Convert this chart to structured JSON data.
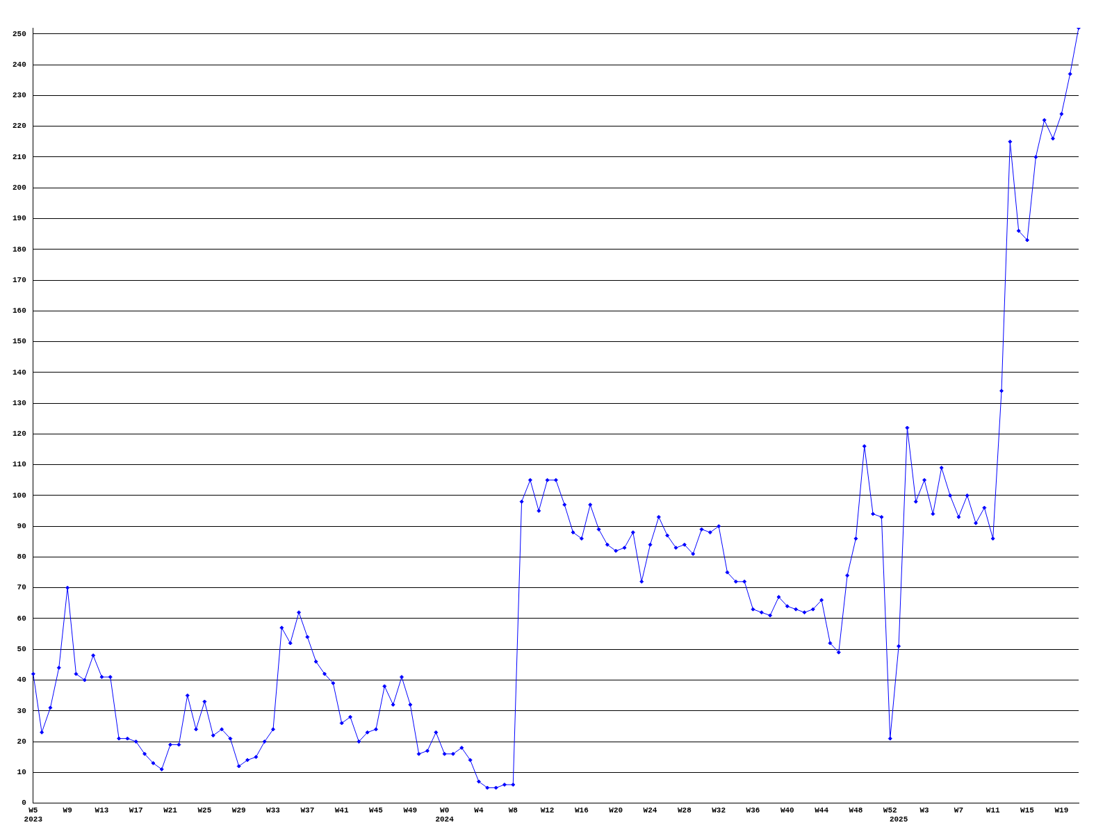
{
  "chart_data": {
    "type": "line",
    "categories": [
      "W5\n2023",
      null,
      null,
      null,
      "W9",
      null,
      null,
      null,
      "W13",
      null,
      null,
      null,
      "W17",
      null,
      null,
      null,
      "W21",
      null,
      null,
      null,
      "W25",
      null,
      null,
      null,
      "W29",
      null,
      null,
      null,
      "W33",
      null,
      null,
      null,
      "W37",
      null,
      null,
      null,
      "W41",
      null,
      null,
      null,
      "W45",
      null,
      null,
      null,
      "W49",
      null,
      null,
      null,
      "W0\n2024",
      null,
      null,
      null,
      "W4",
      null,
      null,
      null,
      "W8",
      null,
      null,
      null,
      "W12",
      null,
      null,
      null,
      "W16",
      null,
      null,
      null,
      "W20",
      null,
      null,
      null,
      "W24",
      null,
      null,
      null,
      "W28",
      null,
      null,
      null,
      "W32",
      null,
      null,
      null,
      "W36",
      null,
      null,
      null,
      "W40",
      null,
      null,
      null,
      "W44",
      null,
      null,
      null,
      "W48",
      null,
      null,
      null,
      "W52",
      "\n2025",
      null,
      null,
      "W3",
      null,
      null,
      null,
      "W7",
      null,
      null,
      null,
      "W11",
      null,
      null,
      null,
      "W15",
      null,
      null,
      null,
      "W19",
      null,
      null
    ],
    "values": [
      42,
      23,
      31,
      44,
      70,
      42,
      40,
      48,
      41,
      41,
      21,
      21,
      20,
      16,
      13,
      11,
      19,
      19,
      35,
      24,
      33,
      22,
      24,
      21,
      12,
      14,
      15,
      20,
      24,
      57,
      52,
      62,
      54,
      46,
      42,
      39,
      26,
      28,
      20,
      23,
      24,
      38,
      32,
      41,
      32,
      16,
      17,
      23,
      16,
      16,
      18,
      14,
      7,
      5,
      5,
      6,
      6,
      98,
      105,
      95,
      105,
      105,
      97,
      88,
      86,
      97,
      89,
      84,
      82,
      83,
      88,
      72,
      84,
      93,
      87,
      83,
      84,
      81,
      89,
      88,
      90,
      75,
      72,
      72,
      63,
      62,
      61,
      67,
      64,
      63,
      62,
      63,
      66,
      52,
      49,
      74,
      86,
      116,
      94,
      93,
      21,
      51,
      122,
      98,
      105,
      94,
      109,
      100,
      93,
      100,
      91,
      96,
      86,
      134,
      215,
      186,
      183,
      210,
      222,
      216,
      224,
      237,
      252
    ],
    "color": "#0000ff",
    "marker": "diamond",
    "ylim": [
      0,
      252
    ],
    "yticks": [
      0,
      10,
      20,
      30,
      40,
      50,
      60,
      70,
      80,
      90,
      100,
      110,
      120,
      130,
      140,
      150,
      160,
      170,
      180,
      190,
      200,
      210,
      220,
      230,
      240,
      250
    ],
    "grid": "y",
    "legend": false
  }
}
